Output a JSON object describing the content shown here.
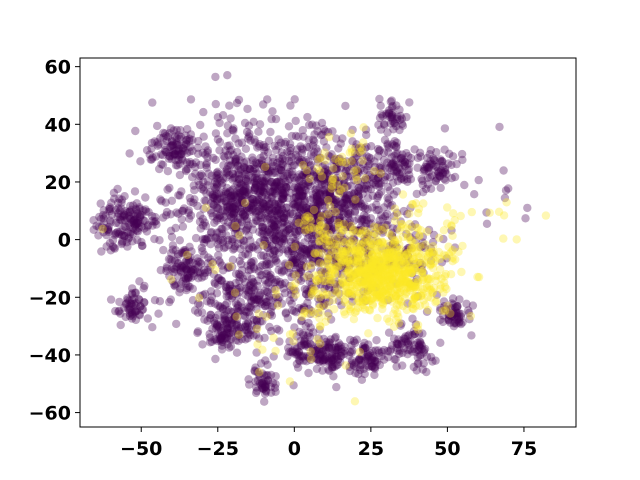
{
  "chart_data": {
    "type": "scatter",
    "title": "",
    "xlabel": "",
    "ylabel": "",
    "xlim": [
      -70,
      92
    ],
    "ylim": [
      -65,
      63
    ],
    "grid": false,
    "legend": "none",
    "x_ticks": [
      -50,
      -25,
      0,
      25,
      50,
      75
    ],
    "y_ticks": [
      -60,
      -40,
      -20,
      0,
      20,
      40,
      60
    ],
    "x_tick_labels": [
      "−50",
      "−25",
      "0",
      "25",
      "50",
      "75"
    ],
    "y_tick_labels": [
      "−60",
      "−40",
      "−20",
      "0",
      "20",
      "40",
      "60"
    ],
    "point_alpha": 0.35,
    "colors": {
      "class_0": "#440154",
      "class_1": "#fde725"
    },
    "series": [
      {
        "clusters": [
          {
            "cx": -55,
            "cy": 6,
            "sx": 5,
            "sy": 5,
            "n": 160
          },
          {
            "cx": -40,
            "cy": 32,
            "sx": 4,
            "sy": 3.5,
            "n": 90
          },
          {
            "cx": -36,
            "cy": -10,
            "sx": 3.5,
            "sy": 3.5,
            "n": 80
          },
          {
            "cx": -53,
            "cy": -22,
            "sx": 3,
            "sy": 3,
            "n": 60
          },
          {
            "cx": -22,
            "cy": -31,
            "sx": 5,
            "sy": 4,
            "n": 110
          },
          {
            "cx": -10,
            "cy": -49,
            "sx": 2.5,
            "sy": 3,
            "n": 50
          },
          {
            "cx": 4,
            "cy": -38,
            "sx": 4,
            "sy": 4,
            "n": 80
          },
          {
            "cx": 13,
            "cy": -40,
            "sx": 4,
            "sy": 3,
            "n": 80
          },
          {
            "cx": 23,
            "cy": -41,
            "sx": 3.5,
            "sy": 3,
            "n": 70
          },
          {
            "cx": 38,
            "cy": -37,
            "sx": 4,
            "sy": 3.5,
            "n": 80
          },
          {
            "cx": 52,
            "cy": -26,
            "sx": 3,
            "sy": 3,
            "n": 60
          },
          {
            "cx": 46,
            "cy": 24,
            "sx": 3.5,
            "sy": 3.5,
            "n": 70
          },
          {
            "cx": 33,
            "cy": 25,
            "sx": 3.5,
            "sy": 4,
            "n": 70
          },
          {
            "cx": 32,
            "cy": 42,
            "sx": 2.5,
            "sy": 2.5,
            "n": 40
          },
          {
            "cx": -12,
            "cy": 14,
            "sx": 14,
            "sy": 13,
            "n": 1000
          },
          {
            "cx": 15,
            "cy": 15,
            "sx": 11,
            "sy": 11,
            "n": 450
          },
          {
            "cx": 8,
            "cy": -5,
            "sx": 11,
            "sy": 11,
            "n": 300
          },
          {
            "cx": 38,
            "cy": -5,
            "sx": 6,
            "sy": 5,
            "n": 60
          },
          {
            "cx": -15,
            "cy": -20,
            "sx": 10,
            "sy": 6,
            "n": 200
          },
          {
            "cx": 65,
            "cy": 15,
            "sx": 10,
            "sy": 10,
            "n": 12
          }
        ]
      },
      {
        "clusters": [
          {
            "cx": 28,
            "cy": -12,
            "sx": 10,
            "sy": 7,
            "n": 800
          },
          {
            "cx": 15,
            "cy": 25,
            "sx": 6,
            "sy": 6,
            "n": 45
          },
          {
            "cx": 8,
            "cy": 5,
            "sx": 4,
            "sy": 4,
            "n": 35
          },
          {
            "cx": 40,
            "cy": 5,
            "sx": 8,
            "sy": 5,
            "n": 40
          },
          {
            "cx": 65,
            "cy": 5,
            "sx": 6,
            "sy": 5,
            "n": 8
          },
          {
            "cx": 0,
            "cy": -30,
            "sx": 10,
            "sy": 10,
            "n": 40
          },
          {
            "cx": -20,
            "cy": 0,
            "sx": 20,
            "sy": 20,
            "n": 15
          }
        ]
      }
    ]
  }
}
